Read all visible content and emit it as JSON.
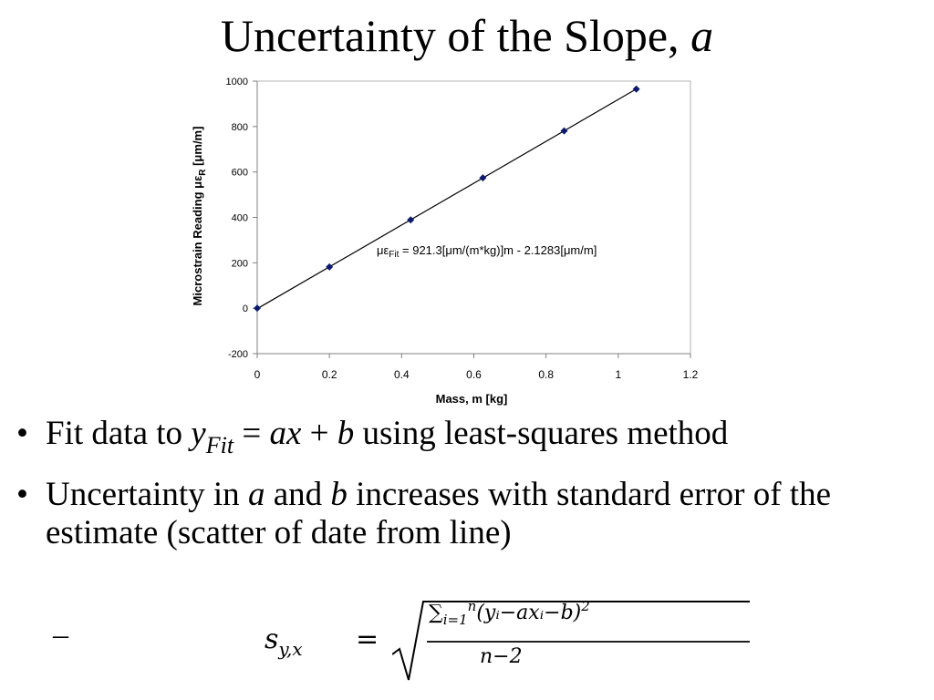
{
  "slide": {
    "title_text": "Uncertainty of the Slope, ",
    "title_var": "a"
  },
  "chart_data": {
    "type": "scatter",
    "x": [
      0,
      0.2,
      0.425,
      0.625,
      0.85,
      1.05
    ],
    "y": [
      0,
      182,
      389,
      574,
      781,
      965
    ],
    "xlabel": "Mass, m [kg]",
    "ylabel_main": "Microstrain Reading με",
    "ylabel_sub": "R",
    "ylabel_unit": " [μm/m]",
    "xlim": [
      0,
      1.2
    ],
    "ylim": [
      -200,
      1000
    ],
    "xticks": [
      "0",
      "0.2",
      "0.4",
      "0.6",
      "0.8",
      "1",
      "1.2"
    ],
    "yticks": [
      "1000",
      "800",
      "600",
      "400",
      "200",
      "0",
      "-200"
    ],
    "fit": {
      "slope": 921.3,
      "intercept": -2.1283
    },
    "annotation_pre": "με",
    "annotation_sub": "Fit",
    "annotation_post": " = 921.3[μm/(m*kg)]m - 2.1283[μm/m]",
    "marker_color": "#0b1a6e",
    "line_color": "#000000"
  },
  "bullets": {
    "b1": {
      "mark": "•",
      "pre": "Fit data to ",
      "y": "y",
      "y_sub": "Fit",
      "eq": " = ",
      "ax": "ax",
      "plus": " + ",
      "b": "b",
      "post": " using least-squares method"
    },
    "b2": {
      "mark": "•",
      "pre": "Uncertainty in ",
      "a": "a",
      "mid": " and ",
      "b": "b",
      "post": " increases with standard error of the estimate (scatter of date from line)"
    }
  },
  "formula": {
    "dash": "–",
    "lhs_s": "s",
    "lhs_sub": "y,x",
    "eq": "=",
    "sum": "∑",
    "sum_upper": "n",
    "sum_lower": "i=1",
    "numerator": "(yᵢ−axᵢ−b)",
    "numerator_exp": "2",
    "denominator": "n−2"
  }
}
